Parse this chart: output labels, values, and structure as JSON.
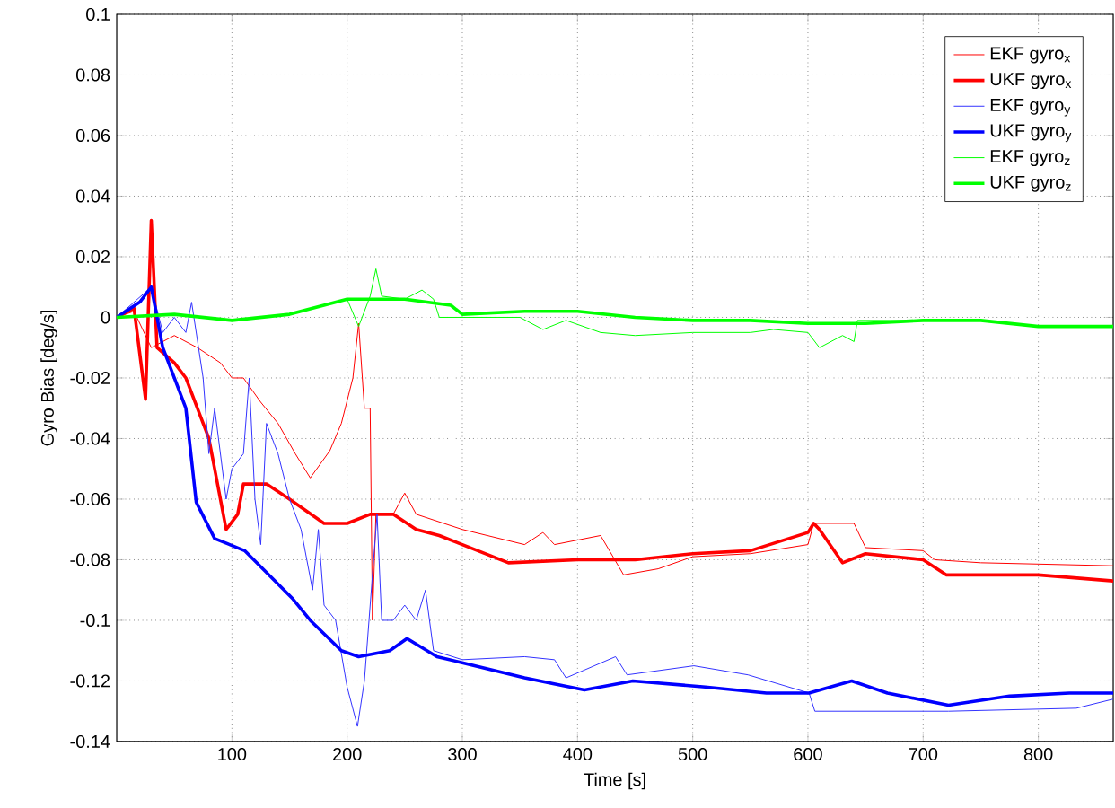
{
  "chart_data": {
    "type": "line",
    "xlabel": "Time [s]",
    "ylabel": "Gyro Bias [deg/s]",
    "xlim": [
      0,
      865
    ],
    "xticks": [
      100,
      200,
      300,
      400,
      500,
      600,
      700,
      800
    ],
    "ylim": [
      -0.14,
      0.1
    ],
    "yticks": [
      -0.14,
      -0.12,
      -0.1,
      -0.08,
      -0.06,
      -0.04,
      -0.02,
      0,
      0.02,
      0.04,
      0.06,
      0.08,
      0.1
    ],
    "grid": true,
    "legend": "top right",
    "line_style": "solid",
    "marker": "none",
    "series": [
      {
        "name": "EKF gyro$_{x}$",
        "color": "#ff0000",
        "x": [
          0,
          15,
          30,
          50,
          70,
          90,
          100,
          110,
          125,
          140,
          155,
          168,
          185,
          195,
          205,
          210,
          215,
          220,
          222,
          225,
          240,
          250,
          260,
          300,
          354,
          370,
          380,
          420,
          440,
          470,
          500,
          550,
          600,
          605,
          640,
          650,
          700,
          710,
          750,
          865
        ],
        "values": [
          0,
          0.002,
          -0.01,
          -0.006,
          -0.01,
          -0.015,
          -0.02,
          -0.02,
          -0.028,
          -0.035,
          -0.045,
          -0.053,
          -0.044,
          -0.035,
          -0.02,
          -0.002,
          -0.03,
          -0.03,
          -0.1,
          -0.065,
          -0.065,
          -0.058,
          -0.065,
          -0.07,
          -0.075,
          -0.071,
          -0.075,
          -0.072,
          -0.085,
          -0.083,
          -0.079,
          -0.078,
          -0.075,
          -0.068,
          -0.068,
          -0.076,
          -0.077,
          -0.08,
          -0.081,
          -0.082
        ]
      },
      {
        "name": "UKF gyro$_{x}$",
        "color": "#ff0000",
        "x": [
          0,
          15,
          25,
          30,
          35,
          50,
          60,
          80,
          95,
          105,
          110,
          130,
          150,
          180,
          200,
          220,
          240,
          260,
          280,
          300,
          320,
          340,
          400,
          450,
          500,
          550,
          600,
          605,
          610,
          630,
          650,
          700,
          720,
          800,
          865
        ],
        "values": [
          0,
          0.003,
          -0.027,
          0.032,
          -0.01,
          -0.015,
          -0.02,
          -0.04,
          -0.07,
          -0.065,
          -0.055,
          -0.055,
          -0.06,
          -0.068,
          -0.068,
          -0.065,
          -0.065,
          -0.07,
          -0.072,
          -0.075,
          -0.078,
          -0.081,
          -0.08,
          -0.08,
          -0.078,
          -0.077,
          -0.071,
          -0.068,
          -0.07,
          -0.081,
          -0.078,
          -0.08,
          -0.085,
          -0.085,
          -0.087
        ]
      },
      {
        "name": "EKF gyro$_{y}$",
        "color": "#3333ff",
        "x": [
          0,
          30,
          40,
          50,
          60,
          65,
          75,
          80,
          85,
          95,
          100,
          110,
          115,
          120,
          125,
          130,
          140,
          150,
          160,
          170,
          175,
          180,
          190,
          200,
          209,
          215,
          226,
          230,
          240,
          250,
          260,
          268,
          275,
          300,
          354,
          380,
          390,
          433,
          443,
          501,
          548,
          601,
          606,
          669,
          722,
          833,
          865
        ],
        "values": [
          0,
          0.01,
          -0.005,
          0,
          -0.005,
          0.005,
          -0.02,
          -0.045,
          -0.03,
          -0.06,
          -0.05,
          -0.045,
          -0.02,
          -0.06,
          -0.075,
          -0.035,
          -0.045,
          -0.06,
          -0.07,
          -0.09,
          -0.07,
          -0.095,
          -0.1,
          -0.122,
          -0.135,
          -0.12,
          -0.065,
          -0.1,
          -0.1,
          -0.095,
          -0.1,
          -0.09,
          -0.11,
          -0.113,
          -0.112,
          -0.113,
          -0.119,
          -0.112,
          -0.118,
          -0.115,
          -0.118,
          -0.124,
          -0.13,
          -0.13,
          -0.13,
          -0.129,
          -0.126
        ]
      },
      {
        "name": "UKF gyro$_{y}$",
        "color": "#0000ff",
        "x": [
          0,
          20,
          30,
          40,
          50,
          60,
          69,
          85,
          111,
          132,
          153,
          168,
          195,
          210,
          237,
          252,
          278,
          300,
          354,
          406,
          448,
          511,
          564,
          601,
          638,
          669,
          722,
          775,
          827,
          865
        ],
        "values": [
          0,
          0.005,
          0.01,
          -0.01,
          -0.02,
          -0.03,
          -0.061,
          -0.073,
          -0.077,
          -0.085,
          -0.093,
          -0.1,
          -0.11,
          -0.112,
          -0.11,
          -0.106,
          -0.112,
          -0.114,
          -0.119,
          -0.123,
          -0.12,
          -0.122,
          -0.124,
          -0.124,
          -0.12,
          -0.124,
          -0.128,
          -0.125,
          -0.124,
          -0.124
        ]
      },
      {
        "name": "EKF gyro$_{z}$",
        "color": "#00ff00",
        "x": [
          0,
          50,
          100,
          150,
          200,
          210,
          220,
          225,
          230,
          250,
          265,
          275,
          280,
          300,
          350,
          370,
          390,
          420,
          450,
          500,
          550,
          570,
          600,
          610,
          630,
          640,
          643,
          700,
          750,
          800,
          865
        ],
        "values": [
          0,
          0.001,
          -0.001,
          0.001,
          0.006,
          -0.003,
          0.007,
          0.016,
          0.007,
          0.006,
          0.009,
          0.006,
          0,
          0,
          0,
          -0.004,
          -0.001,
          -0.005,
          -0.006,
          -0.005,
          -0.005,
          -0.004,
          -0.005,
          -0.01,
          -0.006,
          -0.008,
          -0.001,
          -0.001,
          -0.001,
          -0.003,
          -0.003
        ]
      },
      {
        "name": "UKF gyro$_{z}$",
        "color": "#00ff00",
        "x": [
          0,
          50,
          100,
          150,
          200,
          250,
          290,
          300,
          354,
          400,
          450,
          500,
          550,
          600,
          650,
          700,
          750,
          800,
          865
        ],
        "values": [
          0,
          0.001,
          -0.001,
          0.001,
          0.006,
          0.006,
          0.004,
          0.001,
          0.002,
          0.002,
          0,
          -0.001,
          -0.001,
          -0.002,
          -0.002,
          -0.001,
          -0.001,
          -0.003,
          -0.003
        ]
      }
    ]
  }
}
